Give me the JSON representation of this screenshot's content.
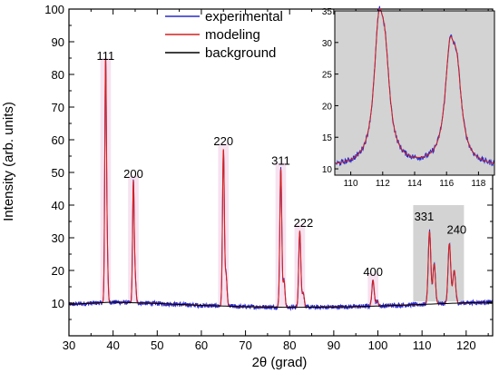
{
  "chart_data": [
    {
      "type": "line",
      "xlabel": "2θ (grad)",
      "ylabel": "Intensity (arb. units)",
      "xlim": [
        30,
        126
      ],
      "ylim": [
        0,
        100
      ],
      "xticks": [
        30,
        40,
        50,
        60,
        70,
        80,
        90,
        100,
        110,
        120
      ],
      "yticks": [
        10,
        20,
        30,
        40,
        50,
        60,
        70,
        80,
        90,
        100
      ],
      "grid": false,
      "legend_position": "top",
      "colors": {
        "experimental": "#2a2ac8",
        "modeling": "#d42020",
        "background": "#000000",
        "shade": "#d3d3d3",
        "peak_shade": "#f4d6ea"
      },
      "series": [
        {
          "name": "experimental"
        },
        {
          "name": "modeling"
        },
        {
          "name": "background"
        }
      ],
      "background_points": {
        "x": [
          30,
          40,
          50,
          60,
          70,
          80,
          90,
          100,
          110,
          120,
          126
        ],
        "y": [
          9.6,
          10.3,
          9.9,
          9.3,
          8.9,
          8.7,
          8.8,
          9.1,
          9.6,
          10.1,
          10.3
        ]
      },
      "peaks": [
        {
          "label": "111",
          "x": 38.3,
          "height": 83,
          "width": 0.35
        },
        {
          "label": "200",
          "x": 44.6,
          "height": 47,
          "width": 0.35
        },
        {
          "label": "220",
          "x": 65.0,
          "height": 57,
          "width": 0.4
        },
        {
          "label": "311",
          "x": 78.0,
          "height": 51,
          "width": 0.42
        },
        {
          "label": "222",
          "x": 82.3,
          "height": 32,
          "width": 0.45
        },
        {
          "label": "400",
          "x": 98.9,
          "height": 17,
          "width": 0.5
        },
        {
          "label": "331",
          "x": 111.7,
          "height": 33,
          "width": 0.55
        },
        {
          "label": "240",
          "x": 116.2,
          "height": 29,
          "width": 0.58
        }
      ],
      "highlight_region": [
        108,
        119.5
      ]
    },
    {
      "type": "line",
      "xlim": [
        109,
        119
      ],
      "ylim": [
        9,
        35
      ],
      "xticks": [
        110,
        112,
        114,
        116,
        118
      ],
      "yticks": [
        10,
        15,
        20,
        25,
        30,
        35
      ],
      "peaks": [
        {
          "x": 111.75,
          "height": 34
        },
        {
          "x": 112.15,
          "height": 27
        },
        {
          "x": 116.2,
          "height": 30
        },
        {
          "x": 116.65,
          "height": 25.5
        }
      ]
    }
  ]
}
